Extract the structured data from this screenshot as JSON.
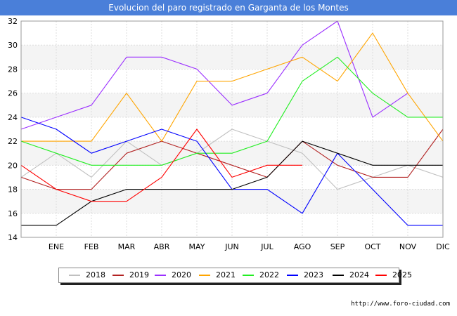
{
  "title": "Evolucion del paro registrado en Garganta de los Montes",
  "footer_url": "http://www.foro-ciudad.com",
  "chart_data": {
    "type": "line",
    "title": "Evolucion del paro registrado en Garganta de los Montes",
    "xlabel": "",
    "ylabel": "",
    "categories": [
      "",
      "ENE",
      "FEB",
      "MAR",
      "ABR",
      "MAY",
      "JUN",
      "JUL",
      "AGO",
      "SEP",
      "OCT",
      "NOV",
      "DIC"
    ],
    "ylim": [
      14,
      32
    ],
    "yticks": [
      14,
      16,
      18,
      20,
      22,
      24,
      26,
      28,
      30,
      32
    ],
    "grid": true,
    "legend_position": "bottom",
    "series": [
      {
        "name": "2018",
        "color": "#c0c0c0",
        "values": [
          19,
          21,
          19,
          22,
          20,
          21,
          23,
          22,
          21,
          18,
          19,
          20,
          19
        ]
      },
      {
        "name": "2019",
        "color": "#b22222",
        "values": [
          19,
          18,
          18,
          21,
          22,
          21,
          20,
          19,
          22,
          20,
          19,
          19,
          23
        ]
      },
      {
        "name": "2020",
        "color": "#9b30ff",
        "values": [
          23,
          24,
          25,
          29,
          29,
          28,
          25,
          26,
          30,
          32,
          24,
          26,
          null
        ]
      },
      {
        "name": "2021",
        "color": "#ffa500",
        "values": [
          22,
          22,
          22,
          26,
          22,
          27,
          27,
          28,
          29,
          27,
          31,
          26,
          22
        ]
      },
      {
        "name": "2022",
        "color": "#22ee22",
        "values": [
          22,
          21,
          20,
          20,
          20,
          21,
          21,
          22,
          27,
          29,
          26,
          24,
          24
        ]
      },
      {
        "name": "2023",
        "color": "#0000ff",
        "values": [
          24,
          23,
          21,
          22,
          23,
          22,
          18,
          18,
          16,
          21,
          18,
          15,
          15
        ]
      },
      {
        "name": "2024",
        "color": "#000000",
        "values": [
          15,
          15,
          17,
          18,
          18,
          18,
          18,
          19,
          22,
          21,
          20,
          20,
          20
        ]
      },
      {
        "name": "2025",
        "color": "#ff0000",
        "values": [
          20,
          18,
          17,
          17,
          19,
          23,
          19,
          20,
          20,
          null,
          null,
          null,
          null
        ]
      }
    ]
  }
}
